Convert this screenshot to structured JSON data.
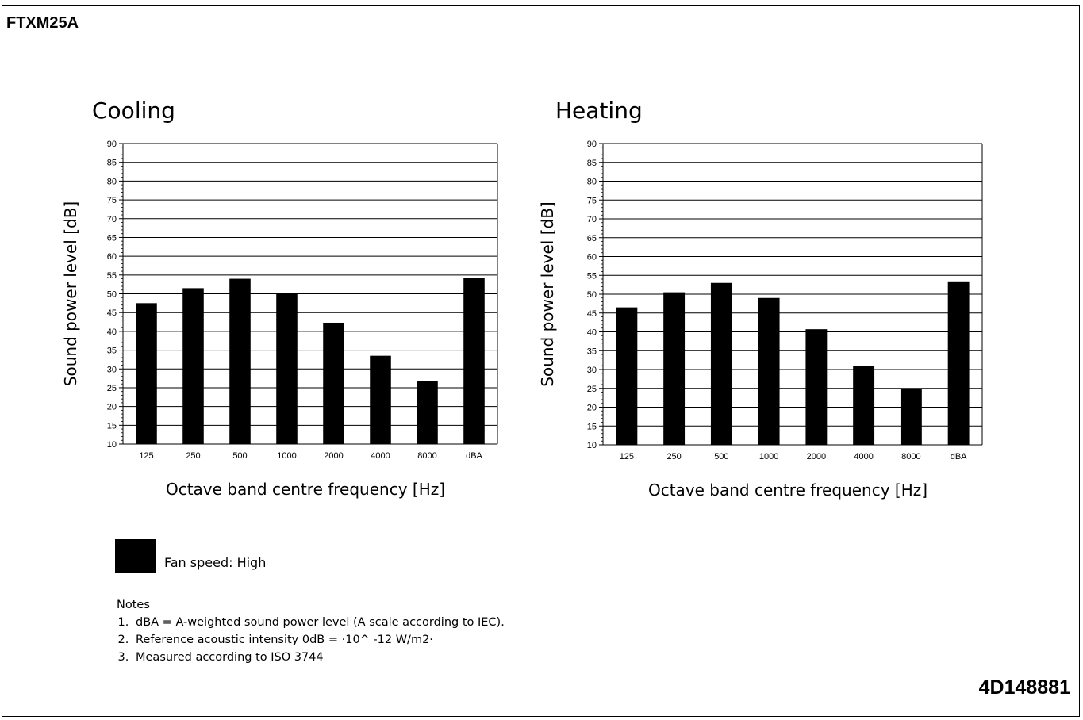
{
  "document": {
    "model": "FTXM25A",
    "code": "4D148881"
  },
  "legend": {
    "label": "Fan speed: High",
    "color": "#000000"
  },
  "notes": {
    "heading": "Notes",
    "items": [
      "dBA = A-weighted sound power level (A scale according to IEC).",
      "Reference acoustic intensity 0dB = ·10^ -12 W/m2·",
      "Measured according to ISO 3744"
    ]
  },
  "chart_data": [
    {
      "type": "bar",
      "title": "Cooling",
      "xlabel": "Octave band centre frequency [Hz]",
      "ylabel": "Sound power level [dB]",
      "categories": [
        "125",
        "250",
        "500",
        "1000",
        "2000",
        "4000",
        "8000",
        "dBA"
      ],
      "yticks": [
        "90",
        "85",
        "80",
        "75",
        "70",
        "65",
        "60",
        "55",
        "50",
        "45",
        "40",
        "35",
        "30",
        "25",
        "20",
        "15",
        "10"
      ],
      "ylim": [
        10,
        90
      ],
      "grid": true,
      "bar_color": "#000000",
      "values": [
        47.5,
        51.5,
        54,
        50,
        42.3,
        33.5,
        26.8,
        54.2
      ]
    },
    {
      "type": "bar",
      "title": "Heating",
      "xlabel": "Octave band centre frequency [Hz]",
      "ylabel": "Sound power level [dB]",
      "categories": [
        "125",
        "250",
        "500",
        "1000",
        "2000",
        "4000",
        "8000",
        "dBA"
      ],
      "yticks": [
        "90",
        "85",
        "80",
        "75",
        "70",
        "65",
        "60",
        "55",
        "50",
        "45",
        "40",
        "35",
        "30",
        "25",
        "20",
        "15",
        "10"
      ],
      "ylim": [
        10,
        90
      ],
      "grid": true,
      "bar_color": "#000000",
      "values": [
        46.5,
        50.5,
        53,
        49,
        40.7,
        31,
        25,
        53.2
      ]
    }
  ]
}
